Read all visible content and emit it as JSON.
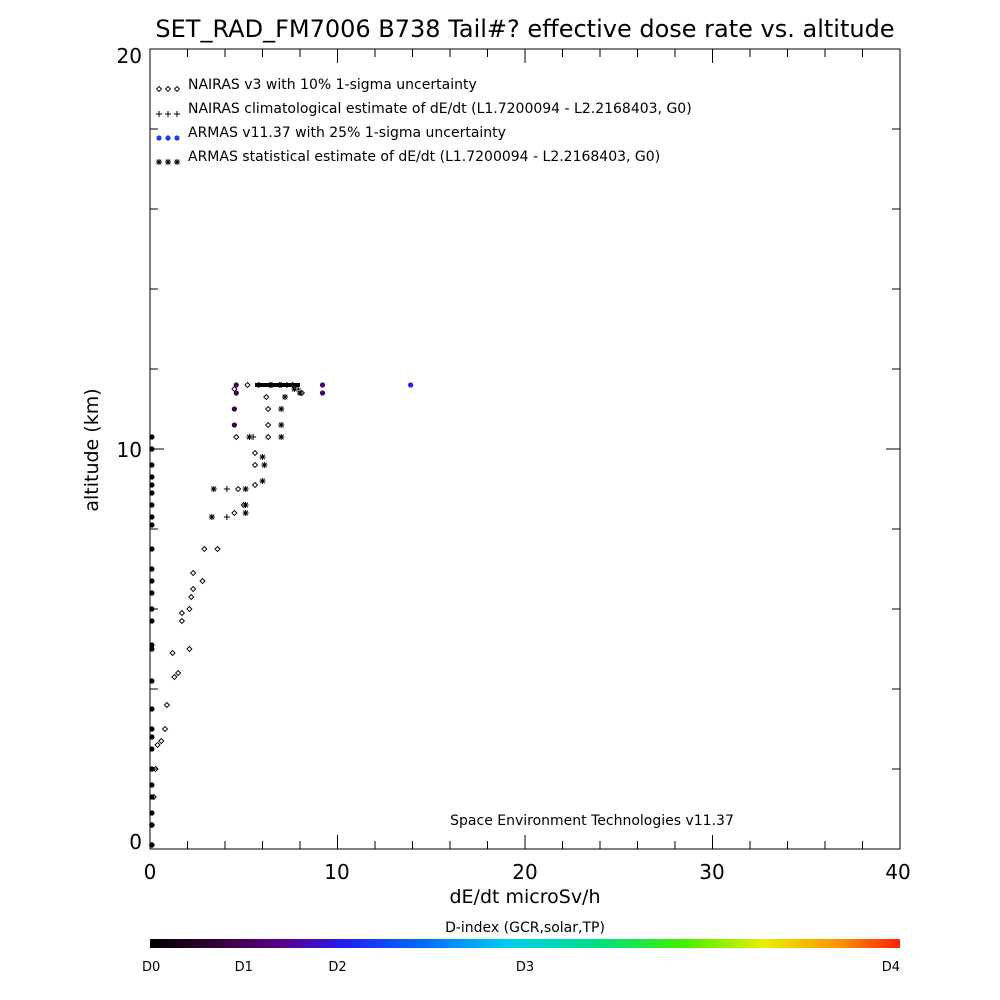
{
  "chart_data": {
    "type": "scatter",
    "title": "SET_RAD_FM7006  B738 Tail#? effective dose rate vs. altitude",
    "xlabel": "dE/dt microSv/h",
    "ylabel": "altitude (km)",
    "xlim": [
      0,
      40
    ],
    "ylim": [
      0,
      20
    ],
    "x_ticks": [
      "0",
      "10",
      "20",
      "30",
      "40"
    ],
    "y_ticks": [
      "0",
      "10",
      "20"
    ],
    "credit": "Space Environment Technologies v11.37",
    "legend": {
      "placement": "top-left",
      "entries": [
        {
          "label": "NAIRAS v3 with 10% 1-sigma uncertainty",
          "marker": "diamond",
          "color": "#000000"
        },
        {
          "label": "NAIRAS climatological estimate of dE/dt (L1.7200094 - L2.2168403, G0)",
          "marker": "plus",
          "color": "#000000"
        },
        {
          "label": "ARMAS v11.37 with 25% 1-sigma uncertainty",
          "marker": "dot",
          "color": "#1f3fd0"
        },
        {
          "label": "ARMAS statistical estimate of dE/dt (L1.7200094 - L2.2168403, G0)",
          "marker": "asterisk",
          "color": "#000000"
        }
      ]
    },
    "colorbar": {
      "label": "D-index (GCR,solar,TP)",
      "ticks": [
        "D0",
        "D1",
        "D2",
        "D3",
        "D4"
      ],
      "tick_positions": [
        0,
        0.125,
        0.25,
        0.5,
        1.0
      ]
    },
    "series": [
      {
        "name": "NAIRAS v3 with 10% 1-sigma uncertainty",
        "marker": "diamond",
        "points": [
          [
            0.1,
            0.1
          ],
          [
            0.1,
            0.6
          ],
          [
            0.2,
            1.3
          ],
          [
            0.3,
            2.0
          ],
          [
            0.4,
            2.6
          ],
          [
            0.6,
            2.7
          ],
          [
            0.8,
            3.0
          ],
          [
            0.9,
            3.6
          ],
          [
            1.3,
            4.3
          ],
          [
            1.5,
            4.4
          ],
          [
            1.2,
            4.9
          ],
          [
            2.1,
            5.0
          ],
          [
            1.7,
            5.7
          ],
          [
            1.7,
            5.9
          ],
          [
            2.1,
            6.0
          ],
          [
            2.2,
            6.3
          ],
          [
            2.3,
            6.5
          ],
          [
            2.8,
            6.7
          ],
          [
            2.3,
            6.9
          ],
          [
            2.9,
            7.5
          ],
          [
            3.6,
            7.5
          ],
          [
            4.5,
            8.4
          ],
          [
            5.0,
            8.6
          ],
          [
            4.7,
            9.0
          ],
          [
            5.6,
            9.1
          ],
          [
            5.6,
            9.6
          ],
          [
            5.6,
            9.9
          ],
          [
            4.6,
            10.3
          ],
          [
            6.3,
            10.3
          ],
          [
            6.3,
            10.6
          ],
          [
            6.3,
            11.0
          ],
          [
            4.5,
            11.5
          ],
          [
            6.2,
            11.3
          ],
          [
            5.2,
            11.6
          ],
          [
            5.8,
            11.6
          ],
          [
            6.4,
            11.6
          ],
          [
            7.0,
            11.6
          ],
          [
            7.6,
            11.6
          ],
          [
            8.1,
            11.4
          ]
        ]
      },
      {
        "name": "NAIRAS climatological estimate of dE/dt (L1.7200094 - L2.2168403, G0)",
        "marker": "plus",
        "points": [
          [
            4.1,
            8.3
          ],
          [
            4.1,
            9.0
          ],
          [
            5.5,
            10.3
          ],
          [
            6.5,
            11.6
          ],
          [
            6.9,
            11.6
          ],
          [
            7.3,
            11.6
          ],
          [
            7.6,
            11.6
          ],
          [
            7.9,
            11.5
          ]
        ]
      },
      {
        "name": "ARMAS v11.37 with 25% 1-sigma uncertainty",
        "marker": "dot",
        "points": [
          [
            0.1,
            0.1
          ],
          [
            0.1,
            0.6
          ],
          [
            0.1,
            0.9
          ],
          [
            0.1,
            1.3
          ],
          [
            0.1,
            1.6
          ],
          [
            0.1,
            2.0
          ],
          [
            0.1,
            2.5
          ],
          [
            0.1,
            2.8
          ],
          [
            0.1,
            3.0
          ],
          [
            0.1,
            3.5
          ],
          [
            0.1,
            4.2
          ],
          [
            0.1,
            5.0
          ],
          [
            0.1,
            5.1
          ],
          [
            0.1,
            5.7
          ],
          [
            0.1,
            6.0
          ],
          [
            0.1,
            6.4
          ],
          [
            0.1,
            6.7
          ],
          [
            0.1,
            7.0
          ],
          [
            0.1,
            7.5
          ],
          [
            0.1,
            8.1
          ],
          [
            0.1,
            8.3
          ],
          [
            0.1,
            8.6
          ],
          [
            0.1,
            8.9
          ],
          [
            0.1,
            9.1
          ],
          [
            0.1,
            9.3
          ],
          [
            0.1,
            9.6
          ],
          [
            0.1,
            10.0
          ],
          [
            0.1,
            10.3
          ],
          [
            4.5,
            10.6
          ],
          [
            4.5,
            11.0
          ],
          [
            4.6,
            11.4
          ],
          [
            4.6,
            11.6
          ],
          [
            9.2,
            11.4
          ],
          [
            9.2,
            11.6
          ],
          [
            13.9,
            11.6
          ]
        ],
        "d_index": [
          0,
          0,
          0,
          0,
          0,
          0,
          0,
          0,
          0,
          0,
          0,
          0,
          0,
          0,
          0,
          0,
          0,
          0,
          0,
          0,
          0,
          0,
          0,
          0,
          0,
          0,
          0,
          0,
          0.11,
          0.11,
          0.12,
          0.12,
          0.14,
          0.15,
          0.26
        ]
      },
      {
        "name": "ARMAS statistical estimate of dE/dt (L1.7200094 - L2.2168403, G0)",
        "marker": "asterisk",
        "points": [
          [
            3.3,
            8.3
          ],
          [
            3.4,
            9.0
          ],
          [
            5.1,
            8.4
          ],
          [
            5.1,
            8.6
          ],
          [
            5.1,
            9.0
          ],
          [
            6.0,
            9.2
          ],
          [
            6.1,
            9.6
          ],
          [
            6.0,
            9.8
          ],
          [
            5.3,
            10.3
          ],
          [
            7.0,
            10.3
          ],
          [
            7.0,
            10.6
          ],
          [
            7.0,
            11.0
          ],
          [
            7.2,
            11.3
          ],
          [
            7.7,
            11.5
          ],
          [
            8.0,
            11.4
          ]
        ]
      }
    ],
    "black_bar_segment": {
      "x_start": 5.6,
      "x_end": 8.0,
      "y": 11.6
    }
  }
}
